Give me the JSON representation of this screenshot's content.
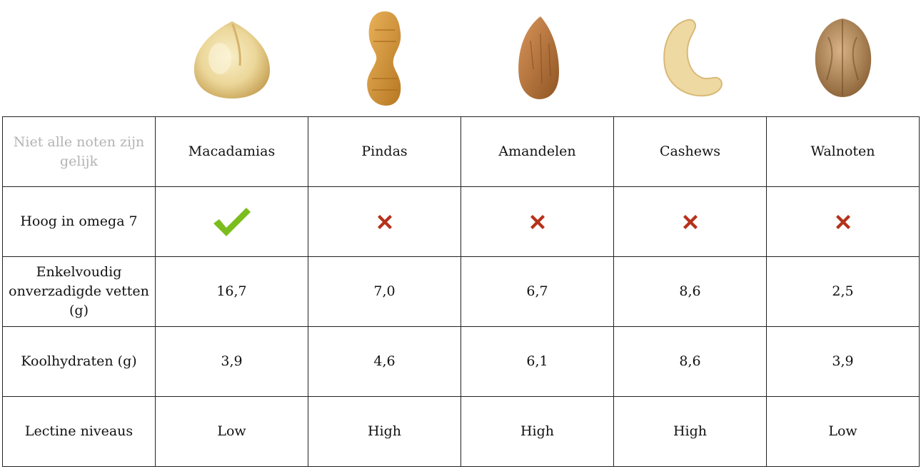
{
  "chart_data": {
    "type": "table",
    "corner_label": "Niet alle noten zijn gelijk",
    "columns": [
      "Macadamias",
      "Pindas",
      "Amandelen",
      "Cashews",
      "Walnoten"
    ],
    "rows": [
      {
        "label": "Hoog in omega 7",
        "values": [
          true,
          false,
          false,
          false,
          false
        ]
      },
      {
        "label": "Enkelvoudig onverzadigde vetten (g)",
        "values": [
          "16,7",
          "7,0",
          "6,7",
          "8,6",
          "2,5"
        ]
      },
      {
        "label": "Koolhydraten (g)",
        "values": [
          "3,9",
          "4,6",
          "6,1",
          "8,6",
          "3,9"
        ]
      },
      {
        "label": "Lectine niveaus",
        "values": [
          "Low",
          "High",
          "High",
          "High",
          "Low"
        ]
      }
    ],
    "nut_images": [
      "macadamia-image",
      "peanut-image",
      "almond-image",
      "cashew-image",
      "walnut-image"
    ]
  },
  "colors": {
    "check": "#7cbd1e",
    "cross": "#b5311a",
    "border": "#222222",
    "corner_text": "#b3b3b3"
  },
  "icons": {
    "yes": "check-icon",
    "no": "cross-icon"
  }
}
